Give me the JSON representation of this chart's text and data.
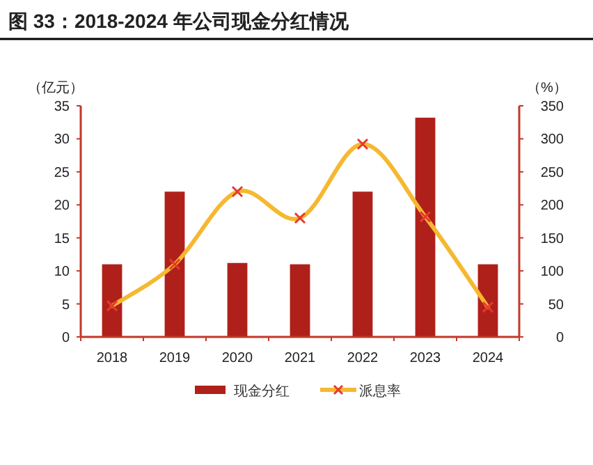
{
  "chart_data": {
    "type": "bar",
    "title": "图 33：2018-2024 年公司现金分红情况",
    "categories": [
      "2018",
      "2019",
      "2020",
      "2021",
      "2022",
      "2023",
      "2024"
    ],
    "ylabel": "（亿元）",
    "y2label": "（%）",
    "ylim": [
      0,
      35
    ],
    "yticks": [
      0,
      5,
      10,
      15,
      20,
      25,
      30,
      35
    ],
    "y2lim": [
      0,
      350
    ],
    "y2ticks": [
      0,
      50,
      100,
      150,
      200,
      250,
      300,
      350
    ],
    "series": [
      {
        "name": "现金分红",
        "color": "#b0201a",
        "values": [
          11,
          22,
          11.2,
          11,
          22,
          33.2,
          11
        ]
      },
      {
        "name": "派息率",
        "type": "line",
        "axis": "y2",
        "color": "#f5b830",
        "marker": "cross",
        "values": [
          47,
          110,
          220,
          180,
          292,
          182,
          45
        ]
      }
    ],
    "legend": "bottom",
    "grid": false
  }
}
